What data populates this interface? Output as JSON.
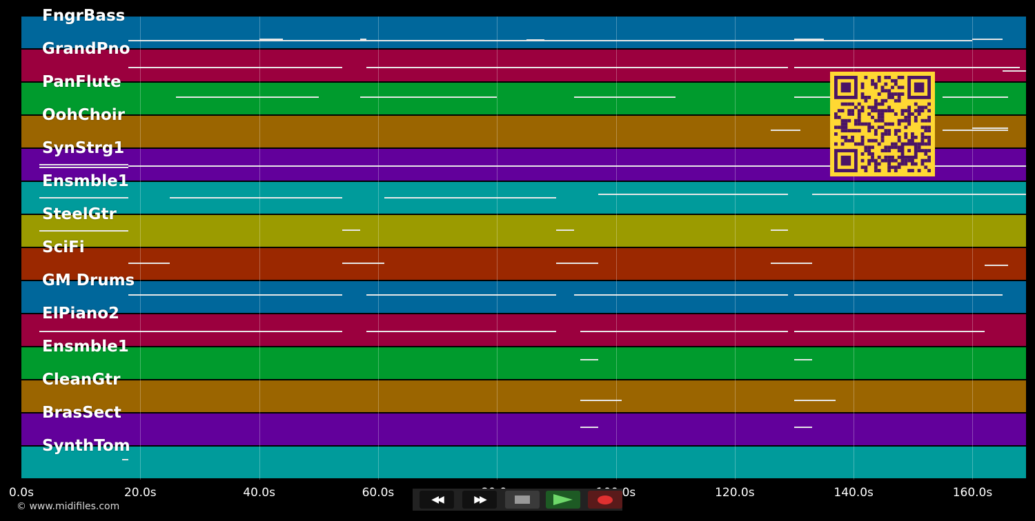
{
  "tracks": [
    {
      "name": "FngrBass",
      "color": "#00679b"
    },
    {
      "name": "GrandPno",
      "color": "#9b003e"
    },
    {
      "name": "PanFlute",
      "color": "#009b2d"
    },
    {
      "name": "OohChoir",
      "color": "#9b6500"
    },
    {
      "name": "SynStrg1",
      "color": "#62009b"
    },
    {
      "name": "Ensmble1",
      "color": "#009b9b"
    },
    {
      "name": "SteelGtr",
      "color": "#9b9b00"
    },
    {
      "name": "SciFi",
      "color": "#9b2800"
    },
    {
      "name": "GM Drums",
      "color": "#00679b"
    },
    {
      "name": "ElPiano2",
      "color": "#9b003e"
    },
    {
      "name": "Ensmble1",
      "color": "#009b2d"
    },
    {
      "name": "CleanGtr",
      "color": "#9b6500"
    },
    {
      "name": "BrasSect",
      "color": "#62009b"
    },
    {
      "name": "SynthTom",
      "color": "#009b9b"
    }
  ],
  "time_axis": {
    "max_seconds": 169,
    "ticks": [
      "0.0s",
      "20.0s",
      "40.0s",
      "60.0s",
      "80.0s",
      "100.0s",
      "120.0s",
      "140.0s",
      "160.0s"
    ]
  },
  "transport": {
    "rewind_icon": "rewind-icon",
    "forward_icon": "fast-forward-icon",
    "stop_icon": "stop-icon",
    "play_icon": "play-icon",
    "record_icon": "record-icon"
  },
  "copyright": "© www.midifiles.com"
}
